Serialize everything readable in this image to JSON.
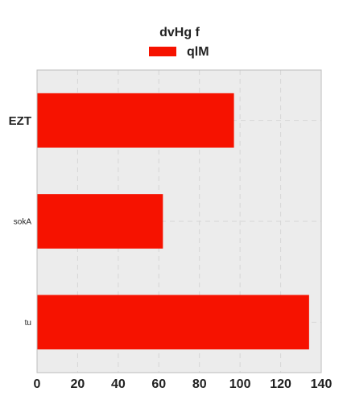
{
  "chart_data": {
    "type": "bar",
    "orientation": "horizontal",
    "title": "",
    "legend": {
      "title": "dvHg  f",
      "placement": "top-center",
      "entries": [
        {
          "name": "qlM",
          "color": "#f61200"
        }
      ]
    },
    "categories": [
      "EZT",
      "sokA",
      "tu"
    ],
    "series": [
      {
        "name": "qlM",
        "color": "#f61200",
        "values": [
          97,
          62,
          134
        ]
      }
    ],
    "x_ticks": [
      "0",
      "20",
      "40",
      "60",
      "80",
      "100",
      "120",
      "140"
    ],
    "xlim": [
      0,
      140
    ],
    "grid": true,
    "xlabel": "",
    "ylabel": ""
  }
}
